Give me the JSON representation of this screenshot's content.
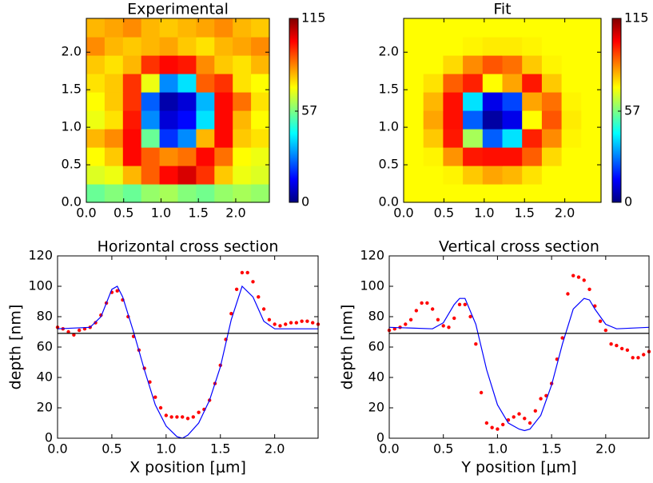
{
  "chart_data": [
    {
      "type": "heatmap",
      "title": "Experimental",
      "xlim": [
        0,
        2.45
      ],
      "ylim": [
        0,
        2.45
      ],
      "xticks": [
        {
          "value": 0,
          "label": "0.0"
        },
        {
          "value": 0.5,
          "label": "0.5"
        },
        {
          "value": 1,
          "label": "1.0"
        },
        {
          "value": 1.5,
          "label": "1.5"
        },
        {
          "value": 2,
          "label": "2.0"
        }
      ],
      "yticks": [
        {
          "value": 0,
          "label": "0.0"
        },
        {
          "value": 0.5,
          "label": "0.5"
        },
        {
          "value": 1,
          "label": "1.0"
        },
        {
          "value": 1.5,
          "label": "1.5"
        },
        {
          "value": 2,
          "label": "2.0"
        }
      ],
      "zlim": [
        0,
        115
      ],
      "colorbar_ticks": [
        0,
        57,
        115
      ],
      "colormap": "jet",
      "z": [
        [
          55,
          58,
          55,
          60,
          62,
          58,
          56,
          60,
          62,
          60
        ],
        [
          68,
          70,
          80,
          90,
          100,
          105,
          95,
          78,
          70,
          68
        ],
        [
          72,
          78,
          100,
          90,
          85,
          88,
          100,
          88,
          72,
          70
        ],
        [
          80,
          85,
          100,
          55,
          20,
          30,
          80,
          100,
          78,
          75
        ],
        [
          70,
          75,
          98,
          30,
          10,
          15,
          40,
          100,
          80,
          72
        ],
        [
          72,
          78,
          95,
          25,
          5,
          10,
          35,
          100,
          88,
          75
        ],
        [
          75,
          78,
          95,
          70,
          30,
          40,
          90,
          95,
          75,
          72
        ],
        [
          78,
          75,
          80,
          95,
          100,
          98,
          85,
          78,
          75,
          80
        ],
        [
          85,
          80,
          78,
          80,
          82,
          78,
          75,
          80,
          82,
          85
        ],
        [
          80,
          82,
          85,
          80,
          78,
          80,
          82,
          85,
          80,
          78
        ]
      ]
    },
    {
      "type": "heatmap",
      "title": "Fit",
      "xlim": [
        0,
        2.45
      ],
      "ylim": [
        0,
        2.45
      ],
      "xticks": [
        {
          "value": 0,
          "label": "0.0"
        },
        {
          "value": 0.5,
          "label": "0.5"
        },
        {
          "value": 1,
          "label": "1.0"
        },
        {
          "value": 1.5,
          "label": "1.5"
        },
        {
          "value": 2,
          "label": "2.0"
        }
      ],
      "yticks": [
        {
          "value": 0,
          "label": "0.0"
        },
        {
          "value": 0.5,
          "label": "0.5"
        },
        {
          "value": 1,
          "label": "1.0"
        },
        {
          "value": 1.5,
          "label": "1.5"
        },
        {
          "value": 2,
          "label": "2.0"
        }
      ],
      "zlim": [
        0,
        115
      ],
      "colorbar_ticks": [
        0,
        57,
        115
      ],
      "colormap": "jet",
      "z": [
        [
          72,
          72,
          72,
          72,
          72,
          72,
          72,
          72,
          72,
          72
        ],
        [
          72,
          72,
          73,
          78,
          82,
          80,
          75,
          72,
          72,
          72
        ],
        [
          72,
          73,
          84,
          98,
          99,
          99,
          90,
          76,
          72,
          72
        ],
        [
          72,
          78,
          98,
          62,
          25,
          40,
          97,
          85,
          73,
          72
        ],
        [
          72,
          82,
          99,
          25,
          4,
          12,
          72,
          91,
          74,
          72
        ],
        [
          72,
          80,
          99,
          40,
          12,
          22,
          82,
          88,
          73,
          72
        ],
        [
          72,
          75,
          90,
          97,
          72,
          82,
          98,
          78,
          72,
          72
        ],
        [
          72,
          72,
          76,
          85,
          91,
          88,
          78,
          73,
          72,
          72
        ],
        [
          72,
          72,
          72,
          73,
          74,
          74,
          73,
          72,
          72,
          72
        ],
        [
          72,
          72,
          72,
          72,
          72,
          72,
          72,
          72,
          72,
          72
        ]
      ]
    },
    {
      "type": "line",
      "title": "Horizontal cross section",
      "x_label": "X position [μm]",
      "y_label": "depth [nm]",
      "xlim": [
        0,
        2.4
      ],
      "ylim": [
        0,
        120
      ],
      "xticks": [
        {
          "value": 0,
          "label": "0.0"
        },
        {
          "value": 0.5,
          "label": "0.5"
        },
        {
          "value": 1,
          "label": "1.0"
        },
        {
          "value": 1.5,
          "label": "1.5"
        },
        {
          "value": 2,
          "label": "2.0"
        }
      ],
      "yticks": [
        0,
        20,
        40,
        60,
        80,
        100,
        120
      ],
      "series": [
        {
          "style": "points",
          "color": "#ff0000",
          "x": [
            0,
            0.05,
            0.1,
            0.15,
            0.2,
            0.25,
            0.3,
            0.35,
            0.4,
            0.45,
            0.5,
            0.55,
            0.6,
            0.65,
            0.7,
            0.75,
            0.8,
            0.85,
            0.9,
            0.95,
            1,
            1.05,
            1.1,
            1.15,
            1.2,
            1.25,
            1.3,
            1.35,
            1.4,
            1.45,
            1.5,
            1.55,
            1.6,
            1.65,
            1.7,
            1.75,
            1.8,
            1.85,
            1.9,
            1.95,
            2,
            2.05,
            2.1,
            2.15,
            2.2,
            2.25,
            2.3,
            2.35,
            2.4
          ],
          "values": [
            73,
            72,
            70,
            68,
            71,
            72,
            73,
            76,
            81,
            89,
            96,
            97,
            91,
            80,
            67,
            58,
            46,
            37,
            27,
            20,
            15,
            14,
            14,
            14,
            13,
            14,
            17,
            19,
            25,
            36,
            48,
            65,
            82,
            98,
            109,
            109,
            103,
            93,
            85,
            78,
            75,
            74,
            75,
            76,
            76,
            77,
            77,
            76,
            75
          ]
        },
        {
          "style": "line",
          "color": "#0000ff",
          "x": [
            0,
            0.3,
            0.4,
            0.5,
            0.55,
            0.6,
            0.7,
            0.8,
            0.9,
            1,
            1.1,
            1.15,
            1.2,
            1.3,
            1.4,
            1.5,
            1.6,
            1.7,
            1.8,
            1.9,
            2,
            2.4
          ],
          "values": [
            72,
            73,
            80,
            98,
            100,
            93,
            70,
            45,
            22,
            8,
            1,
            0,
            2,
            10,
            25,
            47,
            78,
            100,
            93,
            77,
            72,
            72
          ]
        },
        {
          "style": "line",
          "color": "#000000",
          "x": [
            0,
            2.4
          ],
          "values": [
            69,
            69
          ]
        }
      ]
    },
    {
      "type": "line",
      "title": "Vertical cross section",
      "x_label": "Y position [μm]",
      "y_label": "depth [nm]",
      "xlim": [
        0,
        2.4
      ],
      "ylim": [
        0,
        120
      ],
      "xticks": [
        {
          "value": 0,
          "label": "0.0"
        },
        {
          "value": 0.5,
          "label": "0.5"
        },
        {
          "value": 1,
          "label": "1.0"
        },
        {
          "value": 1.5,
          "label": "1.5"
        },
        {
          "value": 2,
          "label": "2.0"
        }
      ],
      "yticks": [
        0,
        20,
        40,
        60,
        80,
        100,
        120
      ],
      "series": [
        {
          "style": "points",
          "color": "#ff0000",
          "x": [
            0,
            0.05,
            0.1,
            0.15,
            0.2,
            0.25,
            0.3,
            0.35,
            0.4,
            0.45,
            0.5,
            0.55,
            0.6,
            0.65,
            0.7,
            0.75,
            0.8,
            0.85,
            0.9,
            0.95,
            1,
            1.05,
            1.1,
            1.15,
            1.2,
            1.25,
            1.3,
            1.35,
            1.4,
            1.45,
            1.5,
            1.55,
            1.6,
            1.65,
            1.7,
            1.75,
            1.8,
            1.85,
            1.9,
            1.95,
            2,
            2.05,
            2.1,
            2.15,
            2.2,
            2.25,
            2.3,
            2.35,
            2.4
          ],
          "values": [
            71,
            72,
            73,
            75,
            78,
            84,
            89,
            89,
            85,
            78,
            74,
            73,
            79,
            88,
            88,
            80,
            62,
            30,
            10,
            7,
            6,
            9,
            12,
            14,
            16,
            13,
            10,
            18,
            26,
            28,
            36,
            52,
            66,
            95,
            107,
            106,
            104,
            98,
            87,
            77,
            71,
            62,
            61,
            59,
            58,
            53,
            53,
            55,
            57
          ]
        },
        {
          "style": "line",
          "color": "#0000ff",
          "x": [
            0,
            0.4,
            0.5,
            0.6,
            0.65,
            0.7,
            0.8,
            0.9,
            1,
            1.1,
            1.2,
            1.25,
            1.3,
            1.4,
            1.5,
            1.6,
            1.7,
            1.8,
            1.85,
            1.9,
            2,
            2.1,
            2.4
          ],
          "values": [
            73,
            72,
            76,
            88,
            92,
            92,
            75,
            45,
            22,
            10,
            6,
            5,
            6,
            15,
            35,
            62,
            85,
            92,
            91,
            85,
            75,
            72,
            73
          ]
        },
        {
          "style": "line",
          "color": "#000000",
          "x": [
            0,
            2.4
          ],
          "values": [
            69,
            69
          ]
        }
      ]
    }
  ]
}
